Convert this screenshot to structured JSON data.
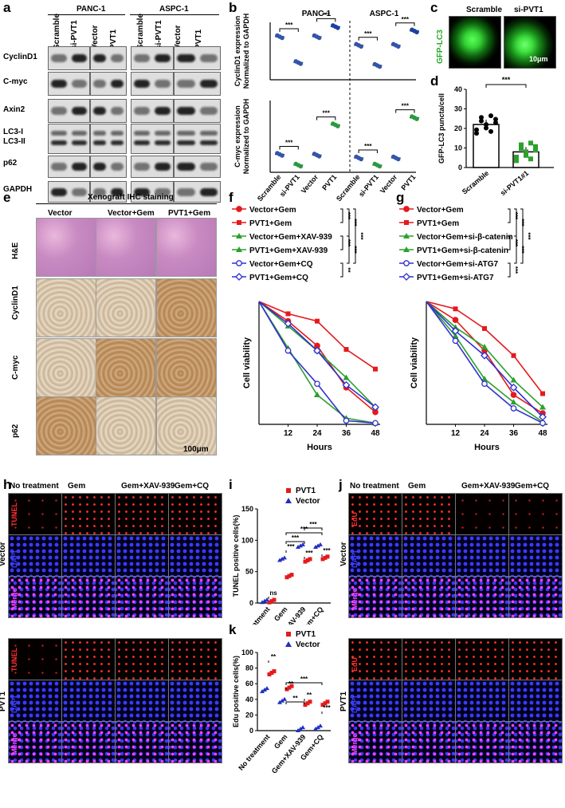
{
  "panels": {
    "a": "a",
    "b": "b",
    "c": "c",
    "d": "d",
    "e": "e",
    "f": "f",
    "g": "g",
    "h": "h",
    "i": "i",
    "j": "j",
    "k": "k"
  },
  "a": {
    "groups": [
      "PANC-1",
      "ASPC-1"
    ],
    "lanes": [
      "Scramble",
      "si-PVT1",
      "Vector",
      "PVT1",
      "Scramble",
      "si-PVT1",
      "Vector",
      "PVT1"
    ],
    "rows": [
      "CyclinD1",
      "C-myc",
      "Axin2",
      "LC3-I",
      "LC3-II",
      "p62",
      "GAPDH"
    ]
  },
  "b": {
    "groups": [
      "PANC-1",
      "ASPC-1"
    ],
    "ylabel_top": "CyclinD1 expression\nNormalized to GAPDH",
    "ylabel_bottom": "C-myc expression\nNormalized to GAPDH",
    "xcats": [
      "Scramble",
      "si-PVT1",
      "Vector",
      "PVT1",
      "Scramble",
      "si-PVT1",
      "Vector",
      "PVT1"
    ],
    "sig": "***"
  },
  "c": {
    "label": "GFP-LC3",
    "scramble": "Scramble",
    "sipvt1": "si-PVT1",
    "scale": "10μm"
  },
  "d": {
    "ylabel": "GFP-LC3 puncta/cell",
    "yticks": [
      "0",
      "10",
      "20",
      "30",
      "40"
    ],
    "cats": [
      "Scramble",
      "si-PVT1#1"
    ],
    "sig": "***"
  },
  "e": {
    "title": "Xenograft IHC staining",
    "cols": [
      "Vector",
      "Vector+Gem",
      "PVT1+Gem"
    ],
    "rows": [
      "H&E",
      "CyclinD1",
      "C-myc",
      "p62"
    ],
    "scale": "100μm"
  },
  "f": {
    "legend": [
      "Vector+Gem",
      "PVT1+Gem",
      "Vector+Gem+XAV-939",
      "PVT1+Gem+XAV-939",
      "Vector+Gem+CQ",
      "PVT1+Gem+CQ"
    ],
    "sig": [
      "***",
      "***",
      "**",
      "***",
      "***",
      "***"
    ],
    "xlabel": "Hours",
    "ylabel": "Cell viability",
    "xticks": [
      "12",
      "24",
      "36",
      "48"
    ]
  },
  "g": {
    "legend": [
      "Vector+Gem",
      "PVT1+Gem",
      "Vector+Gem+si-β-catenin",
      "PVT1+Gem+si-β-catenin",
      "Vector+Gem+si-ATG7",
      "PVT1+Gem+si-ATG7"
    ],
    "sig": [
      "***",
      "***",
      "***",
      "***",
      "***",
      "***"
    ],
    "xlabel": "Hours",
    "ylabel": "Cell viability",
    "xticks": [
      "12",
      "24",
      "36",
      "48"
    ]
  },
  "h": {
    "cols": [
      "No treatment",
      "Gem",
      "Gem+XAV-939",
      "Gem+CQ"
    ],
    "channels": [
      "TUNEL",
      "DAPI",
      "Merge"
    ],
    "groups": [
      "Vector",
      "PVT1"
    ],
    "scale": "100μm"
  },
  "i": {
    "legend": [
      "PVT1",
      "Vector"
    ],
    "ylabel": "TUNEL positive cells(%)",
    "yticks": [
      "0",
      "50",
      "100",
      "150"
    ],
    "cats": [
      "No treatment",
      "Gem",
      "Gem+XAV-939",
      "Gem+CQ"
    ],
    "sig": [
      "ns",
      "***",
      "***",
      "***",
      "***",
      "***",
      "***"
    ]
  },
  "j": {
    "cols": [
      "No treatment",
      "Gem",
      "Gem+XAV-939",
      "Gem+CQ"
    ],
    "channels": [
      "EdU",
      "DAPI",
      "Merge"
    ],
    "groups": [
      "Vector",
      "PVT1"
    ],
    "scale": "100μm"
  },
  "k": {
    "legend": [
      "PVT1",
      "Vector"
    ],
    "ylabel": "Edu positive cells(%)",
    "yticks": [
      "0",
      "20",
      "40",
      "60",
      "80",
      "100"
    ],
    "cats": [
      "No treatment",
      "Gem",
      "Gem+XAV-939",
      "Gem+CQ"
    ],
    "sig": [
      "**",
      "**",
      "**",
      "**",
      "***",
      "***"
    ]
  },
  "chart_data": [
    {
      "type": "scatter",
      "panel": "b-top",
      "title": "CyclinD1 expression",
      "ylim": [
        0,
        4
      ],
      "categories": [
        "Scramble",
        "si-PVT1",
        "Vector",
        "PVT1",
        "Scramble",
        "si-PVT1",
        "Vector",
        "PVT1"
      ],
      "values": [
        3.0,
        1.2,
        3.0,
        3.7,
        2.4,
        1.0,
        2.4,
        3.4
      ]
    },
    {
      "type": "scatter",
      "panel": "b-bottom",
      "title": "C-myc expression",
      "ylim": [
        0,
        10
      ],
      "categories": [
        "Scramble",
        "si-PVT1",
        "Vector",
        "PVT1",
        "Scramble",
        "si-PVT1",
        "Vector",
        "PVT1"
      ],
      "values": [
        2.5,
        1.0,
        2.4,
        6.6,
        2.0,
        1.0,
        2.0,
        7.6
      ]
    },
    {
      "type": "bar",
      "panel": "d",
      "ylim": [
        0,
        40
      ],
      "categories": [
        "Scramble",
        "si-PVT1#1"
      ],
      "values": [
        22,
        8
      ]
    },
    {
      "type": "line",
      "panel": "f",
      "x": [
        0,
        12,
        24,
        36,
        48
      ],
      "ylim": [
        0,
        100
      ],
      "series": [
        {
          "name": "Vector+Gem",
          "values": [
            100,
            84,
            64,
            30,
            10
          ]
        },
        {
          "name": "PVT1+Gem",
          "values": [
            100,
            90,
            84,
            61,
            45
          ]
        },
        {
          "name": "Vector+Gem+XAV-939",
          "values": [
            100,
            62,
            24,
            5,
            1
          ]
        },
        {
          "name": "PVT1+Gem+XAV-939",
          "values": [
            100,
            80,
            60,
            38,
            14
          ]
        },
        {
          "name": "Vector+Gem+CQ",
          "values": [
            100,
            60,
            33,
            3,
            1
          ]
        },
        {
          "name": "PVT1+Gem+CQ",
          "values": [
            100,
            82,
            60,
            32,
            14
          ]
        }
      ]
    },
    {
      "type": "line",
      "panel": "g",
      "x": [
        0,
        12,
        24,
        36,
        48
      ],
      "ylim": [
        0,
        100
      ],
      "series": [
        {
          "name": "Vector+Gem",
          "values": [
            100,
            85,
            60,
            24,
            9
          ]
        },
        {
          "name": "PVT1+Gem",
          "values": [
            100,
            94,
            78,
            56,
            25
          ]
        },
        {
          "name": "Vector+Gem+si-β-catenin",
          "values": [
            100,
            72,
            37,
            18,
            2
          ]
        },
        {
          "name": "PVT1+Gem+si-β-catenin",
          "values": [
            100,
            79,
            63,
            36,
            14
          ]
        },
        {
          "name": "Vector+Gem+si-ATG7",
          "values": [
            100,
            68,
            33,
            13,
            1
          ]
        },
        {
          "name": "PVT1+Gem+si-ATG7",
          "values": [
            100,
            76,
            56,
            30,
            6
          ]
        }
      ]
    },
    {
      "type": "scatter",
      "panel": "i",
      "ylim": [
        0,
        150
      ],
      "categories": [
        "No treatment",
        "Gem",
        "Gem+XAV-939",
        "Gem+CQ"
      ],
      "series": [
        {
          "name": "PVT1",
          "values": [
            3,
            43,
            68,
            72
          ]
        },
        {
          "name": "Vector",
          "values": [
            3,
            70,
            91,
            91
          ]
        }
      ]
    },
    {
      "type": "scatter",
      "panel": "k",
      "ylim": [
        0,
        100
      ],
      "categories": [
        "No treatment",
        "Gem",
        "Gem+XAV-939",
        "Gem+CQ"
      ],
      "series": [
        {
          "name": "PVT1",
          "values": [
            74,
            55,
            35,
            35
          ]
        },
        {
          "name": "Vector",
          "values": [
            52,
            38,
            2,
            4
          ]
        }
      ]
    }
  ]
}
